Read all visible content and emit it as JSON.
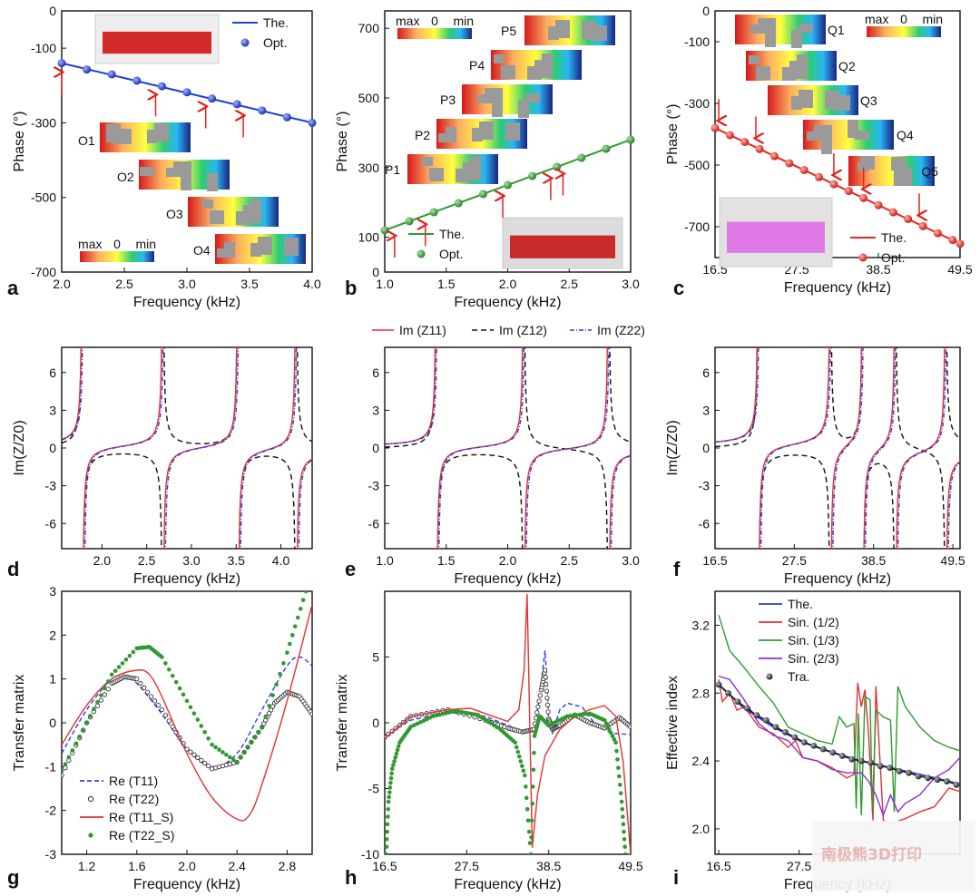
{
  "chart_data": [
    {
      "id": "a",
      "type": "scatter",
      "panel_label": "a",
      "xlabel": "Frequency (kHz)",
      "ylabel": "Phase (°)",
      "xlim": [
        2.0,
        4.0
      ],
      "ylim": [
        -700,
        0
      ],
      "xticks": [
        "2.0",
        "2.5",
        "3.0",
        "3.5",
        "4.0"
      ],
      "yticks": [
        "0",
        "-100",
        "-300",
        "-500",
        "-700"
      ],
      "line": {
        "name": "The.",
        "x": [
          2.0,
          4.0
        ],
        "y": [
          -140,
          -300
        ],
        "color": "#1f3fd8"
      },
      "points": {
        "name": "Opt.",
        "color": "#2035c8",
        "x": [
          2.0,
          2.2,
          2.4,
          2.6,
          2.8,
          3.0,
          3.2,
          3.4,
          3.6,
          3.8,
          4.0
        ],
        "y": [
          -140,
          -157,
          -170,
          -187,
          -202,
          -218,
          -235,
          -250,
          -267,
          -285,
          -300
        ]
      },
      "arrows_x": [
        2.0,
        2.75,
        3.15,
        3.45
      ],
      "insets": [
        {
          "label": "O1"
        },
        {
          "label": "O2"
        },
        {
          "label": "O3"
        },
        {
          "label": "O4"
        }
      ],
      "colorbar": {
        "max": "max",
        "mid": "0",
        "min": "min"
      }
    },
    {
      "id": "b",
      "type": "scatter",
      "panel_label": "b",
      "xlabel": "Frequency (kHz)",
      "ylabel": "Phase (°)",
      "xlim": [
        1.0,
        3.0
      ],
      "ylim": [
        0,
        750
      ],
      "xticks": [
        "1.0",
        "1.5",
        "2.0",
        "2.5",
        "3.0"
      ],
      "yticks": [
        "0",
        "100",
        "300",
        "500",
        "700"
      ],
      "line": {
        "name": "The.",
        "x": [
          1.0,
          3.0
        ],
        "y": [
          120,
          380
        ],
        "color": "#2e9a2e"
      },
      "points": {
        "name": "Opt.",
        "color": "#268a26",
        "x": [
          1.0,
          1.2,
          1.4,
          1.6,
          1.8,
          2.0,
          2.2,
          2.4,
          2.6,
          2.8,
          3.0
        ],
        "y": [
          120,
          146,
          172,
          198,
          224,
          250,
          276,
          302,
          328,
          354,
          380
        ]
      },
      "arrows_x": [
        1.08,
        1.33,
        1.96,
        2.35,
        2.45
      ],
      "insets": [
        {
          "label": "P1"
        },
        {
          "label": "P2"
        },
        {
          "label": "P3"
        },
        {
          "label": "P4"
        },
        {
          "label": "P5"
        }
      ],
      "colorbar": {
        "max": "max",
        "mid": "0",
        "min": "min"
      }
    },
    {
      "id": "c",
      "type": "scatter",
      "panel_label": "c",
      "xlabel": "Frequency (kHz)",
      "ylabel": "Phase (°)",
      "xlim": [
        16.5,
        49.5
      ],
      "ylim": [
        -800,
        0
      ],
      "xticks": [
        "16.5",
        "27.5",
        "38.5",
        "49.5"
      ],
      "yticks": [
        "0",
        "-100",
        "-300",
        "-500",
        "-700"
      ],
      "line": {
        "name": "The.",
        "x": [
          16.5,
          49.5
        ],
        "y": [
          -380,
          -755
        ],
        "color": "#e8261e"
      },
      "points": {
        "name": "Opt.",
        "color": "#e02018",
        "x": [
          16.5,
          18.5,
          20.5,
          22.5,
          24.5,
          26.5,
          28.5,
          30.5,
          32.5,
          34.5,
          36.5,
          38.5,
          40.5,
          42.5,
          44.5,
          46.5,
          48.5,
          49.5
        ],
        "y": [
          -380,
          -403,
          -425,
          -448,
          -471,
          -494,
          -516,
          -539,
          -562,
          -584,
          -607,
          -630,
          -653,
          -675,
          -698,
          -721,
          -743,
          -755
        ]
      },
      "arrows_x": [
        17.0,
        22.0,
        32.5,
        36.5,
        44.0
      ],
      "insets": [
        {
          "label": "Q1"
        },
        {
          "label": "Q2"
        },
        {
          "label": "Q3"
        },
        {
          "label": "Q4"
        },
        {
          "label": "Q5"
        }
      ],
      "colorbar": {
        "max": "max",
        "mid": "0",
        "min": "min"
      }
    },
    {
      "id": "d",
      "type": "line",
      "panel_label": "d",
      "xlabel": "Frequency (kHz)",
      "ylabel": "Im(Z/Z0)",
      "xlim": [
        1.55,
        4.35
      ],
      "ylim": [
        -8,
        8
      ],
      "xticks": [
        {
          "v": 2.0,
          "t": "2.0"
        },
        {
          "v": 2.5,
          "t": "2.5"
        },
        {
          "v": 3.0,
          "t": "3.0"
        },
        {
          "v": 3.5,
          "t": "3.5"
        },
        {
          "v": 4.0,
          "t": "4.0"
        }
      ],
      "yticks": [
        "6",
        "3",
        "0",
        "-3",
        "-6"
      ],
      "poles_odd": [
        1.78,
        3.52
      ],
      "poles_even": [
        2.68,
        4.17
      ],
      "series": [
        {
          "name": "Im (Z11)"
        },
        {
          "name": "Im (Z12)"
        },
        {
          "name": "Im (Z22)"
        }
      ]
    },
    {
      "id": "e",
      "type": "line",
      "panel_label": "e",
      "xlabel": "Frequency (kHz)",
      "ylabel": "",
      "xlim": [
        1.0,
        3.0
      ],
      "ylim": [
        -8,
        8
      ],
      "xticks": [
        {
          "v": 1.0,
          "t": "1.0"
        },
        {
          "v": 1.5,
          "t": "1.5"
        },
        {
          "v": 2.0,
          "t": "2.0"
        },
        {
          "v": 2.5,
          "t": "2.5"
        },
        {
          "v": 3.0,
          "t": "3.0"
        }
      ],
      "yticks": [
        "6",
        "3",
        "0",
        "-3",
        "-6"
      ],
      "poles_odd": [
        1.42
      ],
      "poles_even": [
        2.13,
        2.82
      ]
    },
    {
      "id": "f",
      "type": "line",
      "panel_label": "f",
      "xlabel": "Frequency (kHz)",
      "ylabel": "Im(Z/Z0)",
      "xlim": [
        16.5,
        50.5
      ],
      "ylim": [
        -8,
        8
      ],
      "xticks": [
        {
          "v": 16.5,
          "t": "16.5"
        },
        {
          "v": 27.5,
          "t": "27.5"
        },
        {
          "v": 38.5,
          "t": "38.5"
        },
        {
          "v": 49.5,
          "t": "49.5"
        }
      ],
      "yticks": [
        "6",
        "3",
        "0",
        "-3",
        "-6"
      ],
      "poles_odd": [
        22.5,
        37.0
      ],
      "poles_even": [
        32.5,
        41.5,
        48.5
      ]
    },
    {
      "id": "g",
      "type": "line",
      "panel_label": "g",
      "xlabel": "Frequency (kHz)",
      "ylabel": "Transfer matrix",
      "xlim": [
        1.0,
        3.0
      ],
      "ylim": [
        -3,
        3
      ],
      "xticks": [
        {
          "v": 1.2,
          "t": "1.2"
        },
        {
          "v": 1.6,
          "t": "1.6"
        },
        {
          "v": 2.0,
          "t": "2.0"
        },
        {
          "v": 2.4,
          "t": "2.4"
        },
        {
          "v": 2.8,
          "t": "2.8"
        }
      ],
      "yticks": [
        "3",
        "2",
        "1",
        "0",
        "-1",
        "-2",
        "-3"
      ],
      "series": [
        {
          "name": "Re (T11)",
          "color": "#2d3ee0",
          "style": "dash",
          "x": [
            1.0,
            1.2,
            1.4,
            1.5,
            1.6,
            1.8,
            2.0,
            2.2,
            2.4,
            2.6,
            2.8,
            2.9,
            3.0
          ],
          "y": [
            -0.7,
            0.3,
            1.0,
            1.05,
            0.9,
            0.2,
            -0.6,
            -1.0,
            -0.7,
            0.3,
            1.3,
            1.5,
            1.3
          ]
        },
        {
          "name": "Re (T22)",
          "color": "#333333",
          "style": "circle",
          "x": [
            1.0,
            1.2,
            1.4,
            1.5,
            1.6,
            1.8,
            2.0,
            2.2,
            2.4,
            2.6,
            2.7,
            2.8,
            2.9,
            3.0
          ],
          "y": [
            -1.2,
            0.0,
            0.9,
            1.05,
            1.0,
            0.3,
            -0.6,
            -1.05,
            -0.9,
            -0.1,
            0.45,
            0.7,
            0.6,
            0.2
          ]
        },
        {
          "name": "Re (T11_S)",
          "color": "#e53030",
          "style": "solid",
          "x": [
            1.0,
            1.2,
            1.4,
            1.6,
            1.7,
            1.8,
            2.0,
            2.2,
            2.4,
            2.5,
            2.6,
            2.8,
            3.0
          ],
          "y": [
            -0.5,
            0.4,
            1.0,
            1.2,
            1.1,
            0.6,
            -0.7,
            -1.7,
            -2.2,
            -2.1,
            -1.4,
            0.5,
            2.7
          ]
        },
        {
          "name": "Re (T22_S)",
          "color": "#2f9a2f",
          "style": "dot",
          "x": [
            1.0,
            1.2,
            1.4,
            1.6,
            1.7,
            1.8,
            2.0,
            2.2,
            2.4,
            2.6,
            2.8,
            2.95
          ],
          "y": [
            -1.1,
            0.0,
            1.1,
            1.7,
            1.73,
            1.5,
            0.5,
            -0.5,
            -0.9,
            -0.1,
            1.6,
            3.0
          ]
        }
      ]
    },
    {
      "id": "h",
      "type": "line",
      "panel_label": "h",
      "xlabel": "Frequency (kHz)",
      "ylabel": "Transfer matrix",
      "xlim": [
        16.5,
        49.5
      ],
      "ylim": [
        -10,
        10
      ],
      "xticks": [
        {
          "v": 16.5,
          "t": "16.5"
        },
        {
          "v": 27.5,
          "t": "27.5"
        },
        {
          "v": 38.5,
          "t": "38.5"
        },
        {
          "v": 49.5,
          "t": "49.5"
        }
      ],
      "yticks": [
        "5",
        "0",
        "-5",
        "-10"
      ],
      "series": [
        {
          "name": "Re (T11)",
          "color": "#2d3ee0",
          "style": "dash",
          "x": [
            16.5,
            20,
            25,
            30,
            33,
            35,
            36.6,
            37.3,
            38,
            38.3,
            38.5,
            39,
            40,
            41,
            43,
            45,
            47,
            49.5
          ],
          "y": [
            -1.0,
            0.2,
            0.8,
            0.5,
            -0.2,
            -0.6,
            -0.4,
            2.0,
            5.5,
            3.0,
            0.0,
            -0.8,
            1.0,
            1.5,
            1.2,
            -0.3,
            -0.8,
            -0.9
          ]
        },
        {
          "name": "Re (T22)",
          "color": "#333333",
          "style": "circle",
          "x": [
            16.5,
            20,
            25,
            30,
            33,
            35,
            36.5,
            37.5,
            38,
            38.5,
            39,
            40,
            42,
            44,
            46,
            48,
            49.5
          ],
          "y": [
            -1.1,
            0.5,
            1.0,
            0.2,
            -0.4,
            -0.7,
            -0.5,
            2.5,
            4.0,
            0.3,
            -0.5,
            -0.2,
            0.6,
            0.0,
            -0.4,
            0.4,
            -0.3
          ]
        },
        {
          "name": "Re (T11_S)",
          "color": "#e53030",
          "style": "solid",
          "x": [
            16.5,
            20,
            25,
            28,
            31,
            33,
            34.5,
            35.2,
            35.6,
            36.3,
            37,
            38,
            40,
            42,
            44,
            46,
            47.5,
            48.5,
            49.5
          ],
          "y": [
            -1.2,
            0.5,
            1.0,
            1.1,
            0.5,
            0.1,
            1.0,
            4.0,
            9.8,
            -9.5,
            -5.5,
            -2.5,
            -0.5,
            0.5,
            1.0,
            1.3,
            0.5,
            -3.0,
            -10.0
          ]
        },
        {
          "name": "Re (T22_S)",
          "color": "#2f9a2f",
          "style": "dot",
          "x": [
            16.7,
            17.0,
            17.5,
            18.5,
            20,
            23,
            26,
            29,
            32,
            34,
            35.3,
            36.1,
            36.6,
            37.3,
            38.5,
            41,
            44,
            46,
            47.5,
            48.3,
            48.8
          ],
          "y": [
            -10.0,
            -6.0,
            -3.5,
            -1.5,
            -0.3,
            0.5,
            0.9,
            0.6,
            -0.5,
            -1.5,
            -4.0,
            -10.0,
            -1.0,
            0.5,
            -0.2,
            0.5,
            0.7,
            0.2,
            -1.5,
            -6.0,
            -10.0
          ]
        }
      ]
    },
    {
      "id": "i",
      "type": "line",
      "panel_label": "i",
      "xlabel": "Frequency (kHz)",
      "ylabel": "Effective index",
      "xlim": [
        16.0,
        49.5
      ],
      "ylim": [
        1.85,
        3.4
      ],
      "xticks": [
        {
          "v": 16.5,
          "t": "16.5"
        },
        {
          "v": 27.5,
          "t": "27.5"
        }
      ],
      "yticks": [
        "3.2",
        "2.8",
        "2.4",
        "2.0"
      ],
      "series": [
        {
          "name": "The.",
          "color": "#1f3fd8",
          "style": "solid",
          "x": [
            16.5,
            20,
            24,
            28,
            32,
            36,
            40,
            44,
            48,
            49.5
          ],
          "y": [
            2.85,
            2.71,
            2.6,
            2.51,
            2.45,
            2.4,
            2.36,
            2.32,
            2.28,
            2.26
          ]
        },
        {
          "name": "Sin. (1/2)",
          "color": "#e53030",
          "style": "solid",
          "x": [
            16.5,
            17,
            18,
            19,
            20,
            22,
            24,
            26,
            27,
            28,
            30,
            32,
            34,
            35,
            35.5,
            36,
            36.5,
            37,
            37.6,
            38,
            39,
            40,
            42,
            44,
            46,
            48,
            49.5
          ],
          "y": [
            2.88,
            2.75,
            2.8,
            2.7,
            2.72,
            2.6,
            2.56,
            2.48,
            2.52,
            2.42,
            2.4,
            2.36,
            2.3,
            2.32,
            2.86,
            2.72,
            2.82,
            2.55,
            2.05,
            2.84,
            2.05,
            2.03,
            2.06,
            2.1,
            2.13,
            2.24,
            2.22
          ]
        },
        {
          "name": "Sin. (1/3)",
          "color": "#2f9a2f",
          "style": "solid",
          "x": [
            16.5,
            18,
            20,
            22,
            24,
            26,
            28,
            30,
            32,
            33,
            34,
            35,
            35.3,
            35.6,
            36,
            36.5,
            37.2,
            37.5,
            38,
            39,
            40,
            40.5,
            41,
            42,
            44,
            46,
            48,
            49.5
          ],
          "y": [
            3.26,
            3.05,
            2.95,
            2.84,
            2.74,
            2.6,
            2.56,
            2.52,
            2.5,
            2.66,
            2.6,
            2.62,
            2.12,
            2.68,
            2.08,
            2.78,
            2.76,
            2.1,
            2.7,
            2.66,
            2.64,
            2.1,
            2.84,
            2.72,
            2.6,
            2.52,
            2.48,
            2.46
          ]
        },
        {
          "name": "Sin. (2/3)",
          "color": "#8a2be2",
          "style": "solid",
          "x": [
            16.5,
            18,
            20,
            22,
            24,
            26,
            28,
            30,
            32,
            34,
            36,
            37,
            38,
            39,
            40,
            41,
            42,
            44,
            46,
            48,
            49.5
          ],
          "y": [
            2.9,
            2.88,
            2.76,
            2.62,
            2.55,
            2.52,
            2.42,
            2.4,
            2.35,
            2.33,
            2.33,
            2.28,
            2.2,
            2.08,
            2.2,
            2.1,
            2.15,
            2.2,
            2.3,
            2.35,
            2.42
          ]
        },
        {
          "name": "Tra.",
          "color": "#111111",
          "style": "point",
          "x": [
            16.5,
            17.8,
            19.1,
            20.4,
            21.7,
            23.0,
            24.3,
            25.6,
            26.9,
            28.2,
            29.5,
            30.8,
            32.1,
            33.4,
            34.7,
            36.0,
            37.3,
            38.6,
            39.9,
            41.2,
            42.5,
            43.8,
            45.1,
            46.4,
            47.7,
            49.0
          ],
          "y": [
            2.85,
            2.8,
            2.75,
            2.71,
            2.67,
            2.64,
            2.6,
            2.57,
            2.54,
            2.51,
            2.49,
            2.47,
            2.45,
            2.43,
            2.41,
            2.4,
            2.39,
            2.37,
            2.36,
            2.34,
            2.33,
            2.31,
            2.3,
            2.29,
            2.28,
            2.26
          ]
        }
      ]
    }
  ],
  "watermark": "南极熊3D打印"
}
